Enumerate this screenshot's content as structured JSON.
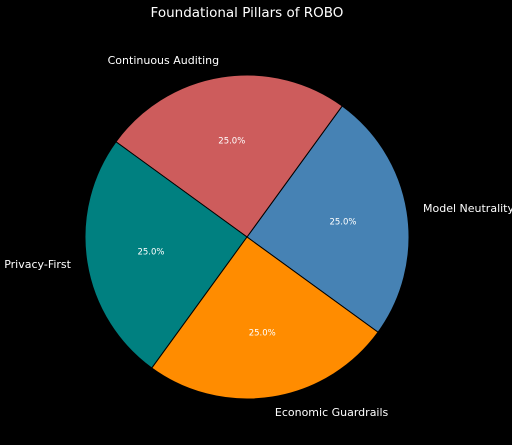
{
  "chart_data": {
    "type": "pie",
    "title": "Foundational Pillars of ROBO",
    "slices": [
      {
        "label": "Model Neutrality",
        "value": 25.0,
        "pct_label": "25.0%",
        "color": "#4682B4"
      },
      {
        "label": "Continuous Auditing",
        "value": 25.0,
        "pct_label": "25.0%",
        "color": "#CD5C5C"
      },
      {
        "label": "Privacy-First",
        "value": 25.0,
        "pct_label": "25.0%",
        "color": "#008080"
      },
      {
        "label": "Economic Guardrails",
        "value": 25.0,
        "pct_label": "25.0%",
        "color": "#FF8C00"
      }
    ],
    "start_angle_deg": -36,
    "direction": "counterclockwise",
    "edge_color": "#000000",
    "background": "#000000",
    "legend": "none"
  }
}
